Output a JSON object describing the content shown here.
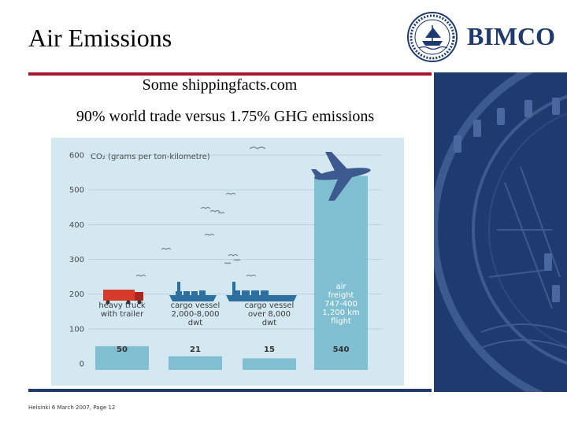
{
  "header": {
    "title": "Air Emissions",
    "brand": "BIMCO"
  },
  "subtitle": {
    "line1": "Some shippingfacts.com",
    "line2": "90% world trade versus 1.75% GHG emissions"
  },
  "footer": {
    "text": "Helsinki 6 March 2007, Page 12"
  },
  "colors": {
    "title_rule": "#a3162b",
    "navy": "#1f3a6e",
    "chart_bg": "#d3e8f0",
    "bar": "#7fbfd1",
    "truck_red": "#d63a2a"
  },
  "icons": [
    "seal-logo-icon",
    "plane-icon",
    "truck-icon",
    "ship-icon",
    "bird-icon"
  ],
  "chart_data": {
    "type": "bar",
    "title": "CO₂ (grams per ton-kilometre)",
    "ylim": [
      0,
      600
    ],
    "yticks": [
      0,
      100,
      200,
      300,
      400,
      500,
      600
    ],
    "categories": [
      [
        "heavy truck",
        "with trailer"
      ],
      [
        "cargo vessel",
        "2,000-8,000",
        "dwt"
      ],
      [
        "cargo vessel",
        "over 8,000",
        "dwt"
      ],
      [
        "air",
        "freight",
        "747-400",
        "1,200 km",
        "flight"
      ]
    ],
    "values": [
      50,
      21,
      15,
      540
    ],
    "value_labels": [
      "50",
      "21",
      "15",
      "540"
    ],
    "grid": true
  }
}
